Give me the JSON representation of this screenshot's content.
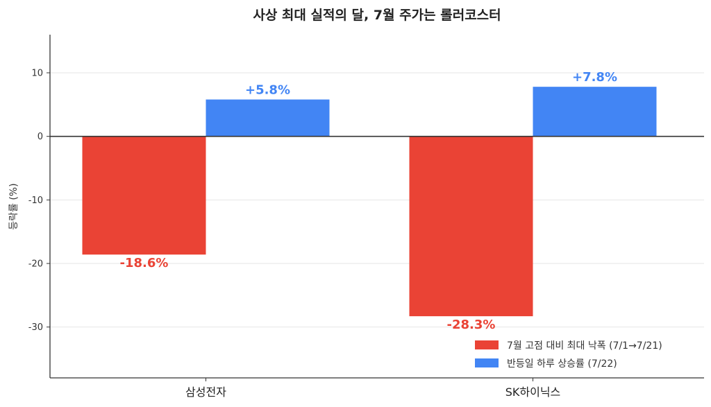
{
  "chart_data": {
    "type": "bar",
    "title": "사상 최대 실적의 달, 7월 주가는 롤러코스터",
    "xlabel": "",
    "ylabel": "등락률 (%)",
    "categories": [
      "삼성전자",
      "SK하이닉스"
    ],
    "series": [
      {
        "name": "7월 고점 대비 최대 낙폭 (7/1→7/21)",
        "values": [
          -18.6,
          -28.3
        ],
        "labels": [
          "-18.6%",
          "-28.3%"
        ],
        "color": "#ea4335"
      },
      {
        "name": "반등일 하루 상승률 (7/22)",
        "values": [
          5.8,
          7.8
        ],
        "labels": [
          "+5.8%",
          "+7.8%"
        ],
        "color": "#4285f4"
      }
    ],
    "ylim": [
      -38,
      16
    ],
    "yticks": [
      -30,
      -20,
      -10,
      0,
      10
    ],
    "ytick_labels": [
      "-30",
      "-20",
      "-10",
      "0",
      "10"
    ],
    "grid": true,
    "legend_position": "bottom-right"
  }
}
